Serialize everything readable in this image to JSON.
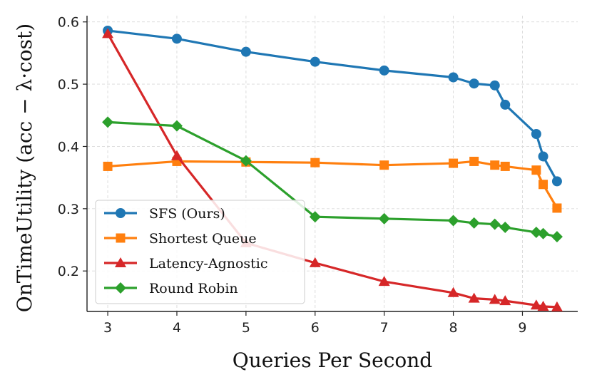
{
  "chart_data": {
    "type": "line",
    "title": "",
    "xlabel": "Queries Per Second",
    "ylabel": "OnTimeUtility (acc − λ·cost)",
    "xlim": [
      2.7,
      9.8
    ],
    "ylim": [
      0.135,
      0.61
    ],
    "xticks": [
      3,
      4,
      5,
      6,
      7,
      8,
      9
    ],
    "yticks": [
      0.2,
      0.3,
      0.4,
      0.5,
      0.6
    ],
    "grid": true,
    "legend": "lower-left",
    "series": [
      {
        "name": "SFS (Ours)",
        "color": "#1f77b4",
        "marker": "circle",
        "x": [
          3,
          4,
          5,
          6,
          7,
          8,
          8.3,
          8.6,
          8.75,
          9.2,
          9.3,
          9.5
        ],
        "y": [
          0.586,
          0.573,
          0.552,
          0.536,
          0.522,
          0.511,
          0.501,
          0.498,
          0.467,
          0.42,
          0.384,
          0.344
        ]
      },
      {
        "name": "Shortest Queue",
        "color": "#ff7f0e",
        "marker": "square",
        "x": [
          3,
          4,
          5,
          6,
          7,
          8,
          8.3,
          8.6,
          8.75,
          9.2,
          9.3,
          9.5
        ],
        "y": [
          0.368,
          0.376,
          0.375,
          0.374,
          0.37,
          0.373,
          0.376,
          0.37,
          0.368,
          0.362,
          0.339,
          0.301
        ]
      },
      {
        "name": "Latency-Agnostic",
        "color": "#d62728",
        "marker": "triangle",
        "x": [
          3,
          4,
          5,
          6,
          7,
          8,
          8.3,
          8.6,
          8.75,
          9.2,
          9.3,
          9.5
        ],
        "y": [
          0.581,
          0.385,
          0.245,
          0.213,
          0.183,
          0.165,
          0.156,
          0.154,
          0.152,
          0.145,
          0.143,
          0.142
        ]
      },
      {
        "name": "Round Robin",
        "color": "#2ca02c",
        "marker": "diamond",
        "x": [
          3,
          4,
          5,
          6,
          7,
          8,
          8.3,
          8.6,
          8.75,
          9.2,
          9.3,
          9.5
        ],
        "y": [
          0.439,
          0.433,
          0.377,
          0.287,
          0.284,
          0.281,
          0.277,
          0.275,
          0.27,
          0.262,
          0.26,
          0.255
        ]
      }
    ]
  }
}
